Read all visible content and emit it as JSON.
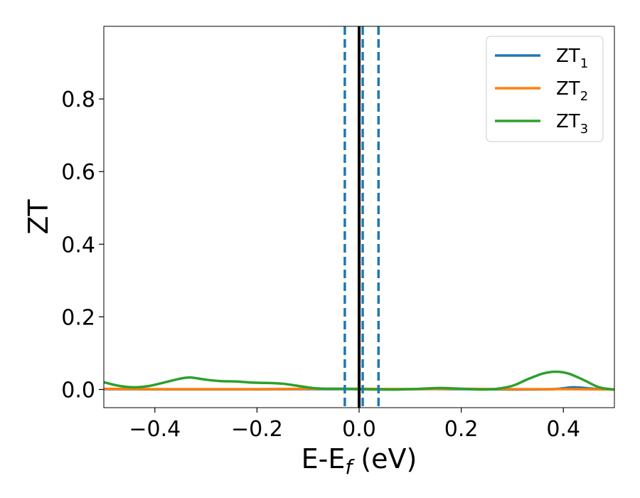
{
  "chart_data": {
    "type": "line",
    "xlabel": "E-E",
    "xlabel_sub": "f",
    "xlabel_unit": " (eV)",
    "ylabel": "ZT",
    "xlim": [
      -0.5,
      0.5
    ],
    "ylim": [
      -0.05,
      1.0
    ],
    "xticks": [
      -0.4,
      -0.2,
      0.0,
      0.2,
      0.4
    ],
    "xtick_labels": [
      "−0.4",
      "−0.2",
      "0.0",
      "0.2",
      "0.4"
    ],
    "yticks": [
      0.0,
      0.2,
      0.4,
      0.6,
      0.8
    ],
    "ytick_labels": [
      "0.0",
      "0.2",
      "0.4",
      "0.6",
      "0.8"
    ],
    "grid": false,
    "legend_position": "top-right",
    "legend": [
      {
        "base": "ZT",
        "sub": "1",
        "color": "#1f77b4"
      },
      {
        "base": "ZT",
        "sub": "2",
        "color": "#ff7f0e"
      },
      {
        "base": "ZT",
        "sub": "3",
        "color": "#2ca02c"
      }
    ],
    "vertical_lines": [
      {
        "x": -0.028,
        "style": "dashed",
        "color": "#1f77b4"
      },
      {
        "x": 0.007,
        "style": "dashed",
        "color": "#1f77b4"
      },
      {
        "x": 0.038,
        "style": "dashed",
        "color": "#1f77b4"
      },
      {
        "x": 0.0,
        "style": "solid",
        "color": "#000000"
      }
    ],
    "series": [
      {
        "color": "#1f77b4",
        "x": [
          -0.5,
          -0.4,
          -0.3,
          -0.2,
          -0.1,
          0.0,
          0.1,
          0.2,
          0.3,
          0.38,
          0.42,
          0.46,
          0.5
        ],
        "y": [
          0.001,
          0.0005,
          0.0005,
          0.0005,
          0.001,
          0.001,
          0.001,
          0.001,
          0.0,
          0.001,
          0.006,
          0.002,
          0.0
        ]
      },
      {
        "color": "#ff7f0e",
        "x": [
          -0.5,
          -0.4,
          -0.3,
          -0.2,
          -0.1,
          0.0,
          0.1,
          0.2,
          0.3,
          0.4,
          0.5
        ],
        "y": [
          0.002,
          0.001,
          0.001,
          0.001,
          0.002,
          0.002,
          0.001,
          0.002,
          0.001,
          0.001,
          0.0
        ]
      },
      {
        "color": "#2ca02c",
        "x": [
          -0.5,
          -0.47,
          -0.44,
          -0.41,
          -0.38,
          -0.35,
          -0.33,
          -0.3,
          -0.27,
          -0.24,
          -0.21,
          -0.18,
          -0.15,
          -0.12,
          -0.09,
          -0.06,
          -0.03,
          0.0,
          0.04,
          0.08,
          0.12,
          0.16,
          0.2,
          0.24,
          0.27,
          0.3,
          0.33,
          0.36,
          0.385,
          0.41,
          0.44,
          0.47,
          0.5
        ],
        "y": [
          0.02,
          0.01,
          0.006,
          0.01,
          0.02,
          0.03,
          0.033,
          0.027,
          0.023,
          0.022,
          0.019,
          0.018,
          0.016,
          0.01,
          0.004,
          0.002,
          0.002,
          0.001,
          0.0,
          0.0,
          0.002,
          0.004,
          0.002,
          0.0,
          0.002,
          0.01,
          0.028,
          0.044,
          0.049,
          0.044,
          0.026,
          0.006,
          0.0
        ]
      }
    ]
  }
}
